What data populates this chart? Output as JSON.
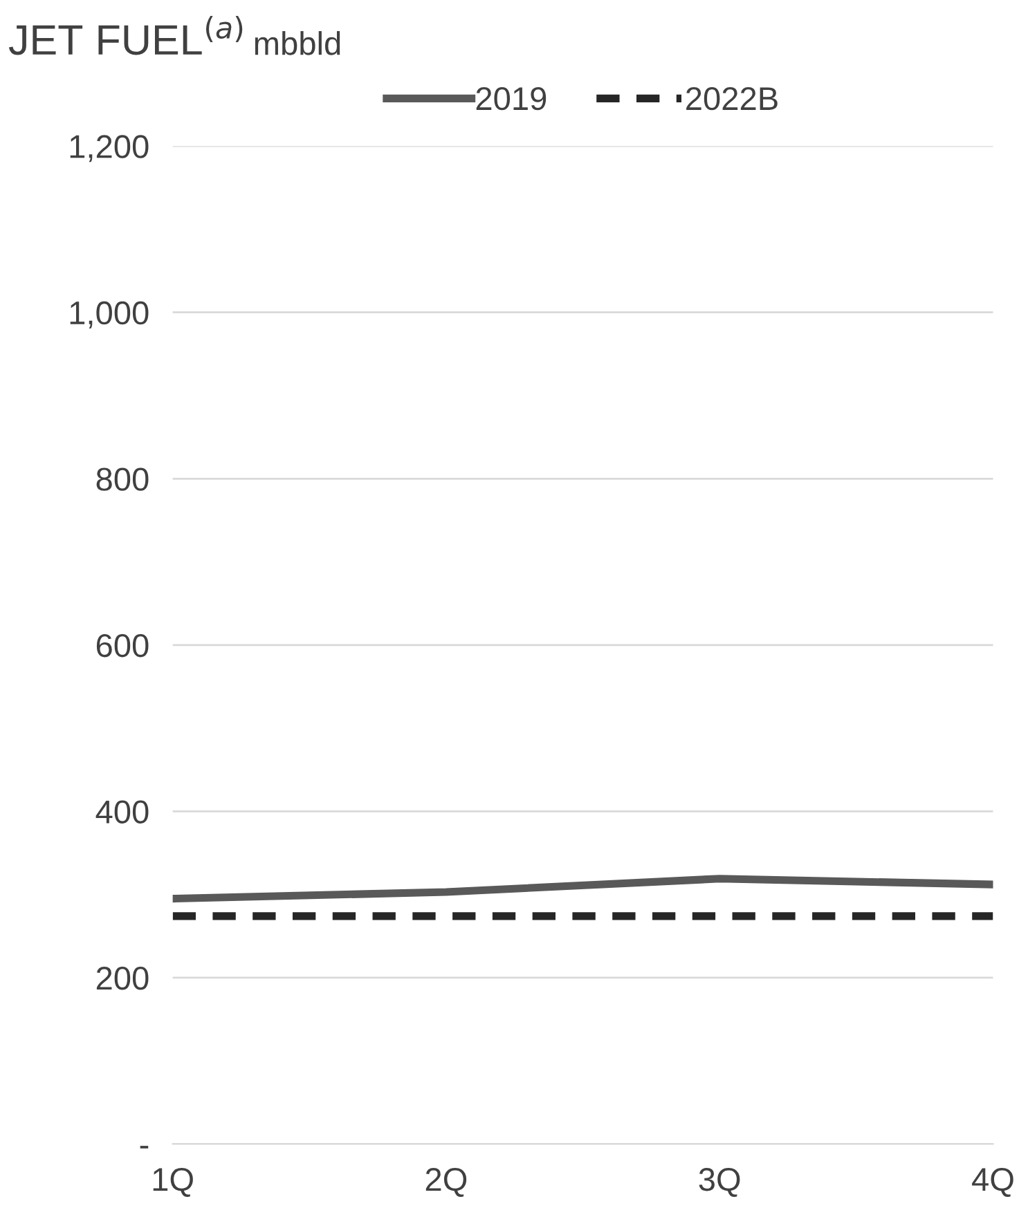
{
  "chart_data": {
    "type": "line",
    "title": "JET FUEL$^{(a)}$",
    "subtitle": "mbbld",
    "categories": [
      "1Q",
      "2Q",
      "3Q",
      "4Q"
    ],
    "series": [
      {
        "name": "2019",
        "color": "#595959",
        "values": [
          295,
          303,
          319,
          312
        ],
        "line_style": "solid"
      },
      {
        "name": "2022B",
        "color": "#262626",
        "values": [
          274,
          274,
          274,
          274
        ],
        "line_style": "dashed"
      }
    ],
    "ylim": [
      0,
      1200
    ],
    "yticks": [
      {
        "value": 0,
        "label": "-"
      },
      {
        "value": 200,
        "label": "200"
      },
      {
        "value": 400,
        "label": "400"
      },
      {
        "value": 600,
        "label": "600"
      },
      {
        "value": 800,
        "label": "800"
      },
      {
        "value": 1000,
        "label": "1,000"
      },
      {
        "value": 1200,
        "label": "1,200"
      }
    ],
    "grid": "y",
    "legend": "top",
    "marker": "none"
  }
}
